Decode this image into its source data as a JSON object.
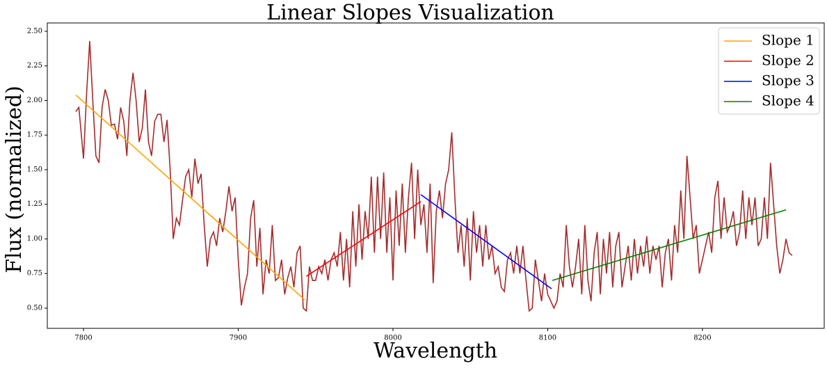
{
  "chart_data": {
    "type": "line",
    "title": "Linear Slopes Visualization",
    "x_label": "Wavelength",
    "y_label": "Flux (normalized)",
    "xlim": [
      7776.6,
      8278.7
    ],
    "ylim": [
      0.354,
      2.56
    ],
    "xticks": [
      7800,
      7900,
      8000,
      8100,
      8200
    ],
    "yticks": [
      {
        "value": 0.5,
        "label": "0.50"
      },
      0.75,
      {
        "value": 1,
        "label": "1.00"
      },
      1.25,
      {
        "value": 1.5,
        "label": "1.50"
      },
      1.75,
      {
        "value": 2,
        "label": "2.00"
      },
      2.25,
      {
        "value": 2.5,
        "label": "2.50"
      }
    ],
    "legend": "upper right",
    "series": [
      {
        "color": "#a52a2a",
        "x": [
          7795,
          7797,
          7800,
          7802,
          7804,
          7806,
          7808,
          7810,
          7812,
          7814,
          7816,
          7818,
          7820,
          7822,
          7824,
          7826,
          7828,
          7830,
          7832,
          7834,
          7836,
          7838,
          7840,
          7842,
          7844,
          7846,
          7848,
          7850,
          7852,
          7854,
          7856,
          7858,
          7860,
          7862,
          7864,
          7866,
          7868,
          7870,
          7872,
          7874,
          7876,
          7878,
          7880,
          7882,
          7884,
          7886,
          7888,
          7890,
          7892,
          7894,
          7896,
          7898,
          7900,
          7902,
          7904,
          7906,
          7908,
          7910,
          7912,
          7914,
          7916,
          7918,
          7920,
          7922,
          7924,
          7926,
          7928,
          7930,
          7932,
          7934,
          7936,
          7938,
          7940,
          7942,
          7944,
          7946,
          7948,
          7950,
          7952,
          7954,
          7956,
          7958,
          7960,
          7962,
          7964,
          7966,
          7968,
          7970,
          7972,
          7974,
          7976,
          7978,
          7980,
          7982,
          7984,
          7986,
          7988,
          7990,
          7992,
          7994,
          7996,
          7998,
          8000,
          8002,
          8004,
          8006,
          8008,
          8010,
          8012,
          8014,
          8016,
          8018,
          8020,
          8022,
          8024,
          8026,
          8028,
          8030,
          8032,
          8034,
          8036,
          8038,
          8040,
          8042,
          8044,
          8046,
          8048,
          8050,
          8052,
          8054,
          8056,
          8058,
          8060,
          8062,
          8064,
          8066,
          8068,
          8070,
          8072,
          8074,
          8076,
          8078,
          8080,
          8082,
          8084,
          8086,
          8088,
          8090,
          8092,
          8094,
          8096,
          8098,
          8100,
          8102,
          8104,
          8106,
          8108,
          8110,
          8112,
          8114,
          8116,
          8118,
          8120,
          8122,
          8124,
          8126,
          8128,
          8130,
          8132,
          8134,
          8136,
          8138,
          8140,
          8142,
          8144,
          8146,
          8148,
          8150,
          8152,
          8154,
          8156,
          8158,
          8160,
          8162,
          8164,
          8166,
          8168,
          8170,
          8172,
          8174,
          8176,
          8178,
          8180,
          8182,
          8184,
          8186,
          8188,
          8190,
          8192,
          8194,
          8196,
          8198,
          8200,
          8202,
          8204,
          8206,
          8208,
          8210,
          8212,
          8214,
          8216,
          8218,
          8220,
          8222,
          8224,
          8226,
          8228,
          8230,
          8232,
          8234,
          8236,
          8238,
          8240,
          8242,
          8244,
          8246,
          8248,
          8250,
          8252,
          8254,
          8256,
          8258
        ],
        "values": [
          1.92,
          1.95,
          1.58,
          2.05,
          2.43,
          2.0,
          1.6,
          1.55,
          1.95,
          2.08,
          2.0,
          1.82,
          1.83,
          1.72,
          1.95,
          1.85,
          1.6,
          2.0,
          2.2,
          2.0,
          1.7,
          1.8,
          2.08,
          1.7,
          1.6,
          1.85,
          1.9,
          1.9,
          1.7,
          1.86,
          1.5,
          1.0,
          1.15,
          1.1,
          1.28,
          1.45,
          1.5,
          1.3,
          1.58,
          1.4,
          1.47,
          1.1,
          0.8,
          1.0,
          1.05,
          0.95,
          1.15,
          1.05,
          1.2,
          1.38,
          1.2,
          1.3,
          0.85,
          0.52,
          0.65,
          0.75,
          1.15,
          1.28,
          0.8,
          1.08,
          0.6,
          0.85,
          0.75,
          1.1,
          0.7,
          0.72,
          0.85,
          0.6,
          0.72,
          0.8,
          0.65,
          0.9,
          0.95,
          0.5,
          0.48,
          0.8,
          0.7,
          0.7,
          0.8,
          0.75,
          0.85,
          0.7,
          0.85,
          0.9,
          0.8,
          1.05,
          0.7,
          1.0,
          0.65,
          1.2,
          0.8,
          1.25,
          0.85,
          1.2,
          1.0,
          1.45,
          0.9,
          1.45,
          1.0,
          1.48,
          0.9,
          1.3,
          0.7,
          1.35,
          0.95,
          1.4,
          0.9,
          1.3,
          1.55,
          1.0,
          1.5,
          1.1,
          1.25,
          0.9,
          1.4,
          0.68,
          1.2,
          1.35,
          1.15,
          1.4,
          1.5,
          1.77,
          1.3,
          0.9,
          1.1,
          0.8,
          1.15,
          0.7,
          1.2,
          0.9,
          1.1,
          0.8,
          1.1,
          0.85,
          0.95,
          0.75,
          0.8,
          0.65,
          0.62,
          0.85,
          0.9,
          0.75,
          0.95,
          0.75,
          0.95,
          0.7,
          0.48,
          0.5,
          0.85,
          0.7,
          0.55,
          0.75,
          0.6,
          0.55,
          0.5,
          0.55,
          0.75,
          0.65,
          1.1,
          0.8,
          0.65,
          0.8,
          1.0,
          0.6,
          1.1,
          0.7,
          0.55,
          0.9,
          1.05,
          0.6,
          1.0,
          0.75,
          1.05,
          0.65,
          0.95,
          1.05,
          0.65,
          0.8,
          0.95,
          0.7,
          1.0,
          0.75,
          0.95,
          0.8,
          1.02,
          0.75,
          0.95,
          0.85,
          0.95,
          0.65,
          0.9,
          1.0,
          0.7,
          1.1,
          0.9,
          1.35,
          1.0,
          1.6,
          1.3,
          1.0,
          1.1,
          0.75,
          0.85,
          0.95,
          1.05,
          0.9,
          1.3,
          1.42,
          1.0,
          1.3,
          1.05,
          1.1,
          1.2,
          0.95,
          1.05,
          1.35,
          1.0,
          1.3,
          1.1,
          1.3,
          0.95,
          1.0,
          1.3,
          1.0,
          1.55,
          1.25,
          0.95,
          0.75,
          0.85,
          1.0,
          0.9,
          0.88
        ]
      },
      {
        "name": "Slope 1",
        "color": "#ffa500",
        "x": [
          7795,
          7943
        ],
        "values": [
          2.04,
          0.56
        ]
      },
      {
        "name": "Slope 2",
        "color": "#ff0000",
        "x": [
          7944,
          8018
        ],
        "values": [
          0.73,
          1.27
        ]
      },
      {
        "name": "Slope 3",
        "color": "#0000ff",
        "x": [
          8018,
          8102.5
        ],
        "values": [
          1.32,
          0.64
        ]
      },
      {
        "name": "Slope 4",
        "color": "#008000",
        "x": [
          8103,
          8254
        ],
        "values": [
          0.7,
          1.21
        ]
      }
    ]
  }
}
